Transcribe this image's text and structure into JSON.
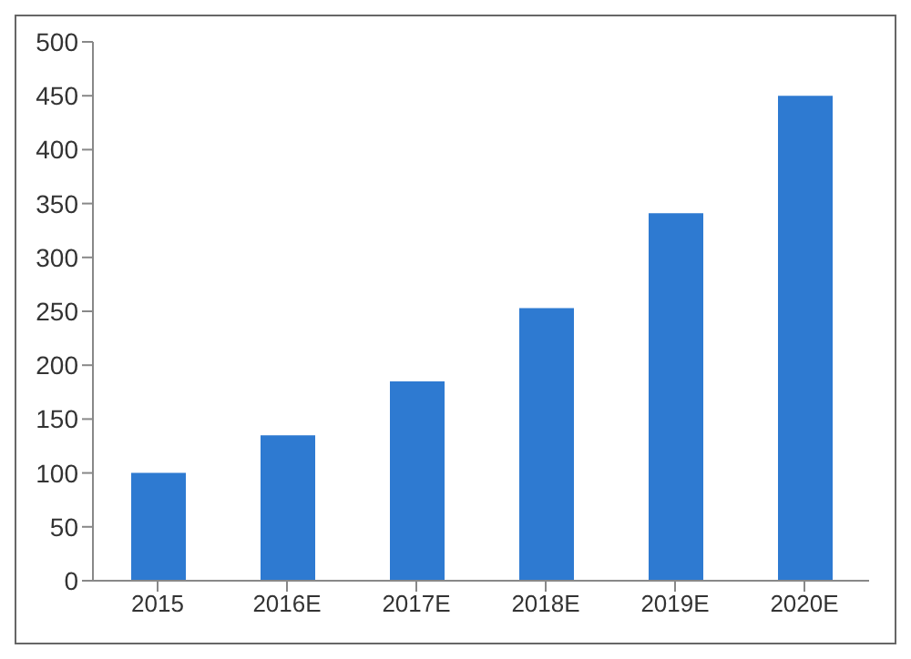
{
  "chart_data": {
    "type": "bar",
    "categories": [
      "2015",
      "2016E",
      "2017E",
      "2018E",
      "2019E",
      "2020E"
    ],
    "values": [
      100,
      135,
      185,
      253,
      341,
      450
    ],
    "color": "#2e7ad1",
    "ylim": [
      0,
      500
    ],
    "yticks": [
      0,
      50,
      100,
      150,
      200,
      250,
      300,
      350,
      400,
      450,
      500
    ],
    "grid": false
  }
}
